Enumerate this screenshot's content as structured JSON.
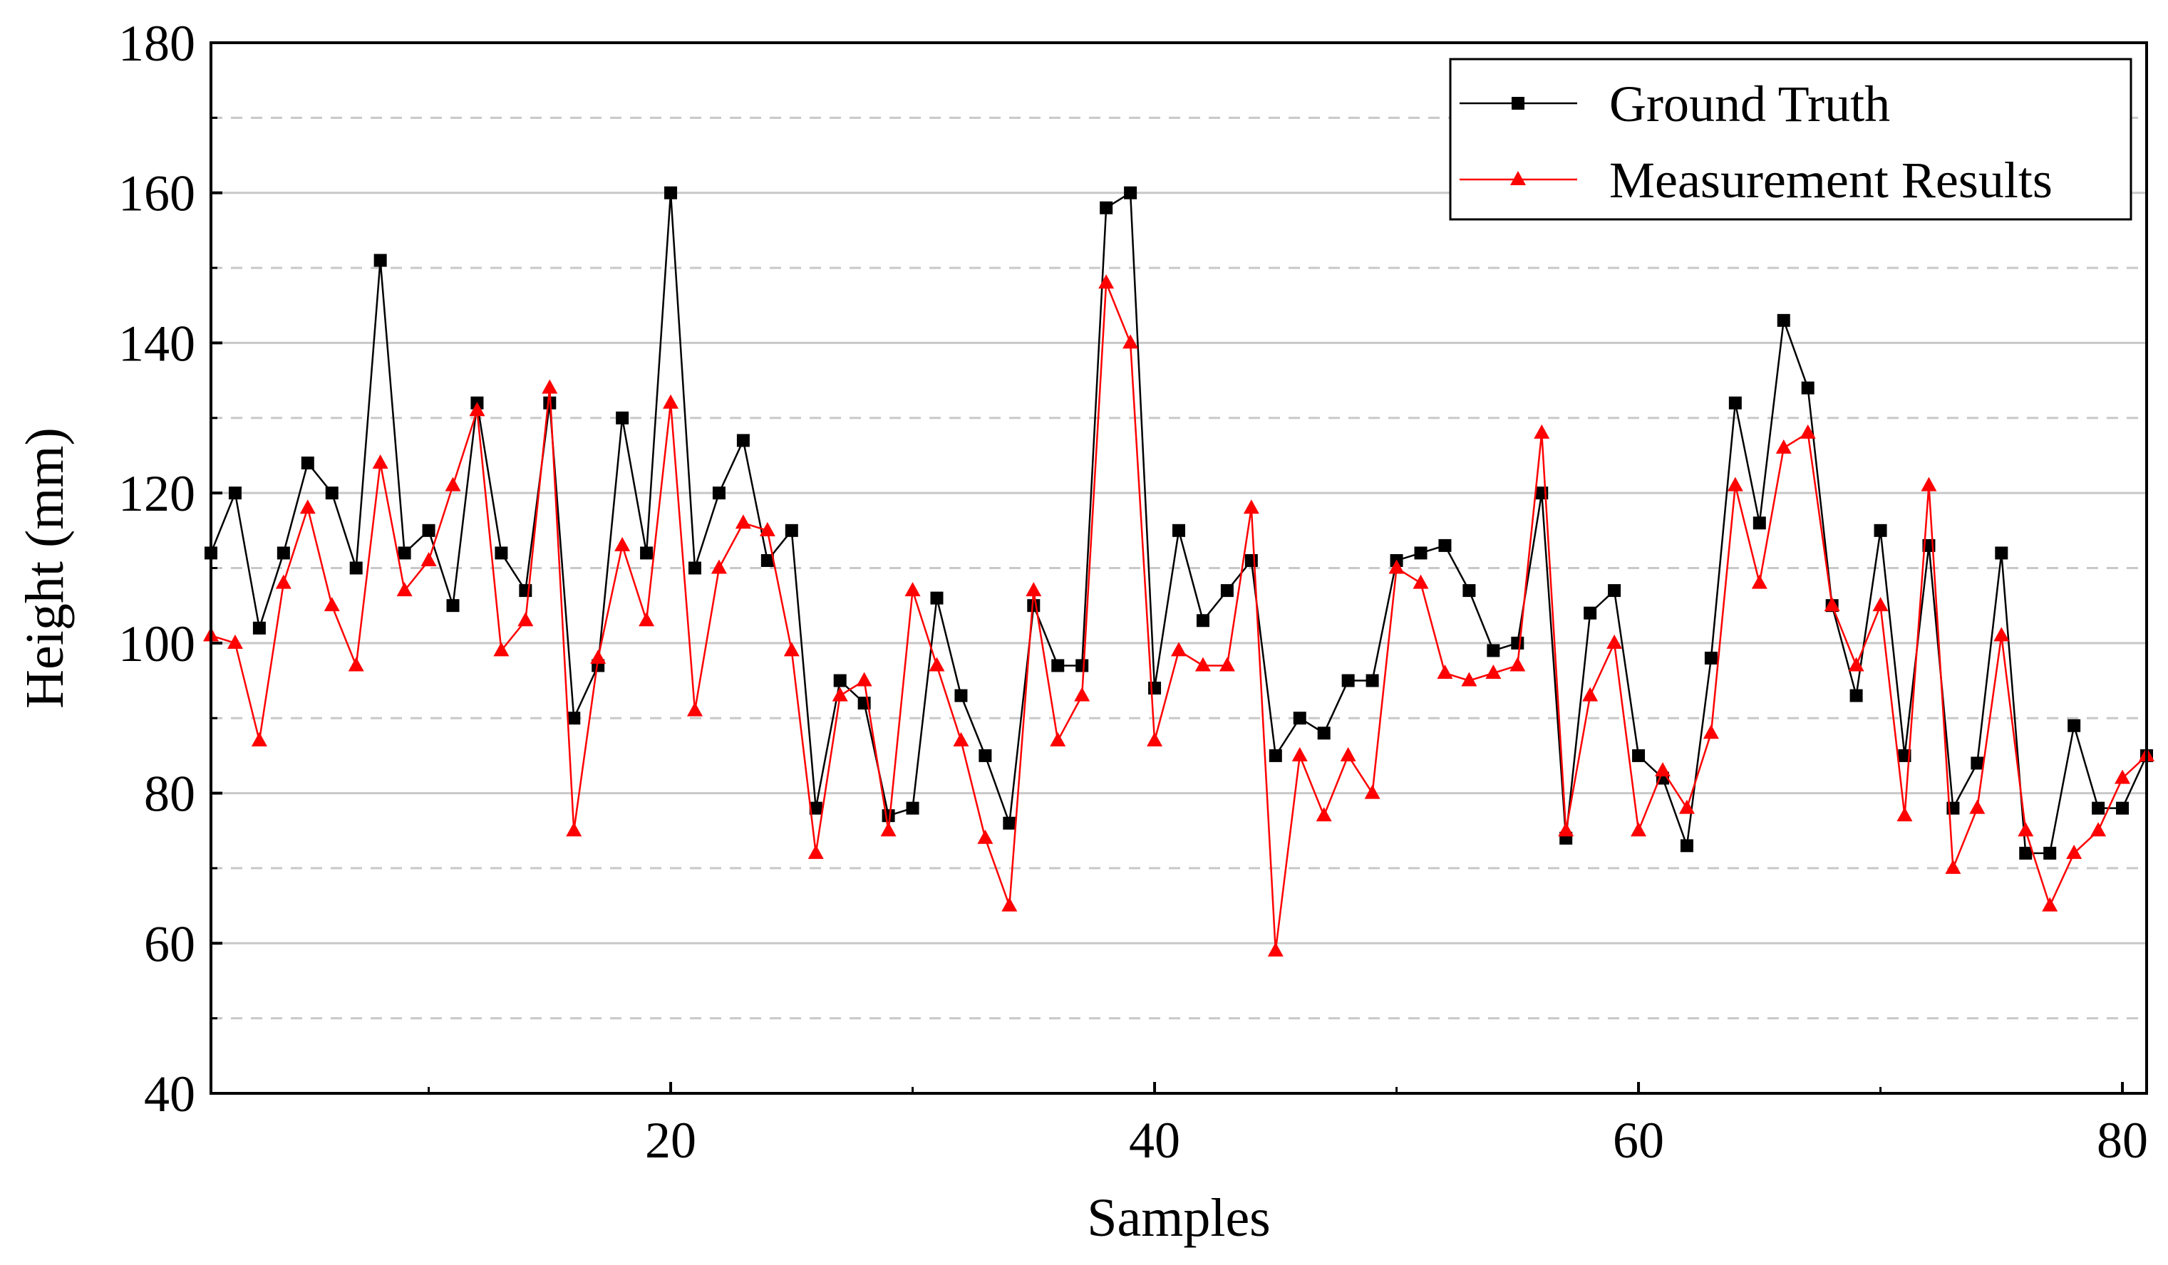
{
  "chart_data": {
    "type": "line",
    "title": "",
    "xlabel": "Samples",
    "ylabel": "Height (mm)",
    "xlim": [
      1,
      81
    ],
    "ylim": [
      40,
      180
    ],
    "xticks": [
      20,
      40,
      60,
      80
    ],
    "yticks": [
      40,
      60,
      80,
      100,
      120,
      140,
      160,
      180
    ],
    "grid": {
      "major_solid": true,
      "minor_dashed": true
    },
    "legend_position": "top-right",
    "x": [
      1,
      2,
      3,
      4,
      5,
      6,
      7,
      8,
      9,
      10,
      11,
      12,
      13,
      14,
      15,
      16,
      17,
      18,
      19,
      20,
      21,
      22,
      23,
      24,
      25,
      26,
      27,
      28,
      29,
      30,
      31,
      32,
      33,
      34,
      35,
      36,
      37,
      38,
      39,
      40,
      41,
      42,
      43,
      44,
      45,
      46,
      47,
      48,
      49,
      50,
      51,
      52,
      53,
      54,
      55,
      56,
      57,
      58,
      59,
      60,
      61,
      62,
      63,
      64,
      65,
      66,
      67,
      68,
      69,
      70,
      71,
      72,
      73,
      74,
      75,
      76,
      77,
      78,
      79,
      80,
      81
    ],
    "series": [
      {
        "name": "Ground Truth",
        "color": "#000000",
        "marker": "square",
        "values": [
          112,
          120,
          102,
          112,
          124,
          120,
          110,
          151,
          112,
          115,
          105,
          132,
          112,
          107,
          132,
          90,
          97,
          130,
          112,
          160,
          110,
          120,
          127,
          111,
          115,
          78,
          95,
          92,
          77,
          78,
          106,
          93,
          85,
          76,
          105,
          97,
          97,
          158,
          160,
          94,
          115,
          103,
          107,
          111,
          85,
          90,
          88,
          95,
          95,
          111,
          112,
          113,
          107,
          99,
          100,
          120,
          74,
          104,
          107,
          85,
          82,
          73,
          98,
          132,
          116,
          143,
          134,
          105,
          93,
          115,
          85,
          113,
          78,
          84,
          112,
          72,
          72,
          89,
          78,
          78,
          85
        ]
      },
      {
        "name": "Measurement Results",
        "color": "#ff0000",
        "marker": "triangle",
        "values": [
          101,
          100,
          87,
          108,
          118,
          105,
          97,
          124,
          107,
          111,
          121,
          131,
          99,
          103,
          134,
          75,
          98,
          113,
          103,
          132,
          91,
          110,
          116,
          115,
          99,
          72,
          93,
          95,
          75,
          107,
          97,
          87,
          74,
          65,
          107,
          87,
          93,
          148,
          140,
          87,
          99,
          97,
          97,
          118,
          59,
          85,
          77,
          85,
          80,
          110,
          108,
          96,
          95,
          96,
          97,
          128,
          75,
          93,
          100,
          75,
          83,
          78,
          88,
          121,
          108,
          126,
          128,
          105,
          97,
          105,
          77,
          121,
          70,
          78,
          101,
          75,
          65,
          72,
          75,
          82,
          85
        ]
      }
    ]
  }
}
